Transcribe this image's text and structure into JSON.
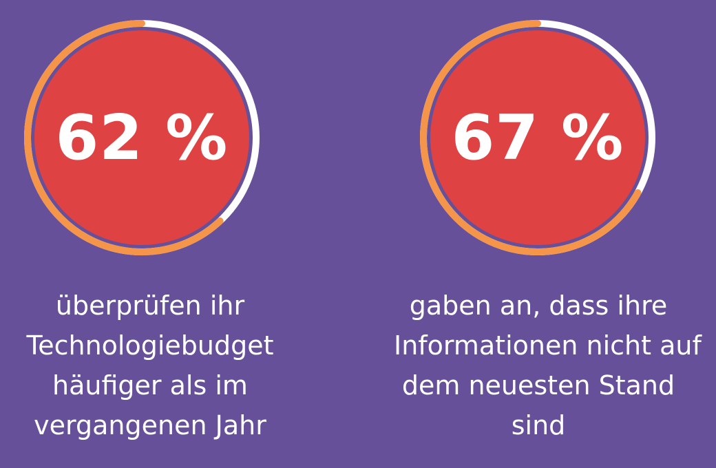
{
  "colors": {
    "background": "#67509a",
    "circle_fill": "#de4242",
    "progress_arc": "#f5954a",
    "ring_track": "#ffffff",
    "text": "#ffffff"
  },
  "stats": [
    {
      "value_text": "62 %",
      "fraction": 0.62,
      "caption_lines": [
        "überprüfen ihr",
        "Technologiebudget",
        "häufiger als im",
        "vergangenen Jahr"
      ]
    },
    {
      "value_text": "67 %",
      "fraction": 0.67,
      "caption_lines": [
        "gaben an, dass ihre",
        "Informationen nicht auf",
        "dem neuesten Stand",
        "sind"
      ]
    }
  ]
}
